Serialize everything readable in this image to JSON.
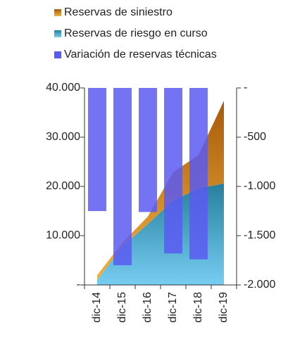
{
  "chart_data": {
    "type": "area_bar",
    "categories": [
      "dic-14",
      "dic-15",
      "dic-16",
      "dic-17",
      "dic-18",
      "dic-19"
    ],
    "series": [
      {
        "name": "Reservas de siniestro",
        "color": "#c07012",
        "values": [
          1000,
          800,
          1500,
          5800,
          6800,
          16800
        ],
        "stack": true
      },
      {
        "name": "Reservas de riesgo en curso",
        "color": "#2b8fb0",
        "values": [
          1000,
          7800,
          12400,
          17100,
          19600,
          20600
        ],
        "stack": true
      },
      {
        "name": "Variación de reservas técnicas",
        "color": "#5a5af2",
        "values": [
          -1250,
          -1800,
          -1260,
          -1680,
          -1740,
          null
        ],
        "axis": "y2"
      }
    ],
    "ylim": [
      0,
      40000
    ],
    "yticks": [
      {
        "value": 0,
        "label": "-"
      },
      {
        "value": 10000,
        "label": "10.000"
      },
      {
        "value": 20000,
        "label": "20.000"
      },
      {
        "value": 30000,
        "label": "30.000"
      },
      {
        "value": 40000,
        "label": "40.000"
      }
    ],
    "y2lim": [
      -2000,
      0
    ],
    "y2ticks": [
      {
        "value": 0,
        "label": "-"
      },
      -500,
      {
        "value": -1000,
        "label": "-1.000"
      },
      {
        "value": -1500,
        "label": "-1.500"
      },
      {
        "value": -2000,
        "label": "-2.000"
      }
    ],
    "legend": "top"
  }
}
